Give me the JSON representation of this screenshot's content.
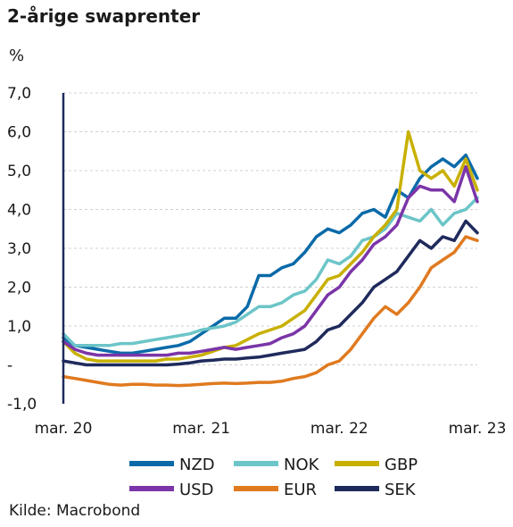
{
  "title": "2-årige swaprenter",
  "unit": "%",
  "source": "Kilde: Macrobond",
  "chart_data": {
    "type": "line",
    "title": "2-årige swaprenter",
    "ylabel": "%",
    "ylim": [
      -1.0,
      7.0
    ],
    "yticks": [
      {
        "v": 7,
        "label": "7,0"
      },
      {
        "v": 6,
        "label": "6,0"
      },
      {
        "v": 5,
        "label": "5,0"
      },
      {
        "v": 4,
        "label": "4,0"
      },
      {
        "v": 3,
        "label": "3,0"
      },
      {
        "v": 2,
        "label": "2,0"
      },
      {
        "v": 1,
        "label": "1,0"
      },
      {
        "v": 0,
        "label": "-"
      },
      {
        "v": -1,
        "label": "-1,0"
      }
    ],
    "xticks": [
      {
        "v": 0,
        "label": "mar. 20"
      },
      {
        "v": 12,
        "label": "mar. 21"
      },
      {
        "v": 24,
        "label": "mar. 22"
      },
      {
        "v": 36,
        "label": "mar. 23"
      }
    ],
    "x_unit": "months since mar. 20",
    "x": [
      0,
      1,
      2,
      3,
      4,
      5,
      6,
      7,
      8,
      9,
      10,
      11,
      12,
      13,
      14,
      15,
      16,
      17,
      18,
      19,
      20,
      21,
      22,
      23,
      24,
      25,
      26,
      27,
      28,
      29,
      30,
      31,
      32,
      33,
      34,
      35,
      36
    ],
    "series": [
      {
        "name": "NZD",
        "color": "#0a6aa8",
        "values": [
          0.7,
          0.5,
          0.45,
          0.4,
          0.35,
          0.3,
          0.3,
          0.35,
          0.4,
          0.45,
          0.5,
          0.6,
          0.8,
          1.0,
          1.2,
          1.2,
          1.5,
          2.3,
          2.3,
          2.5,
          2.6,
          2.9,
          3.3,
          3.5,
          3.4,
          3.6,
          3.9,
          4.0,
          3.8,
          4.5,
          4.3,
          4.8,
          5.1,
          5.3,
          5.1,
          5.4,
          4.8
        ]
      },
      {
        "name": "NOK",
        "color": "#6cc5c8",
        "values": [
          0.8,
          0.5,
          0.5,
          0.5,
          0.5,
          0.55,
          0.55,
          0.6,
          0.65,
          0.7,
          0.75,
          0.8,
          0.9,
          0.95,
          1.0,
          1.1,
          1.3,
          1.5,
          1.5,
          1.6,
          1.8,
          1.9,
          2.2,
          2.7,
          2.6,
          2.8,
          3.2,
          3.3,
          3.5,
          3.9,
          3.8,
          3.7,
          4.0,
          3.6,
          3.9,
          4.0,
          4.3
        ]
      },
      {
        "name": "GBP",
        "color": "#c8b000",
        "values": [
          0.6,
          0.3,
          0.15,
          0.1,
          0.1,
          0.1,
          0.1,
          0.1,
          0.1,
          0.15,
          0.15,
          0.2,
          0.25,
          0.35,
          0.45,
          0.5,
          0.65,
          0.8,
          0.9,
          1.0,
          1.2,
          1.4,
          1.8,
          2.2,
          2.3,
          2.6,
          2.9,
          3.3,
          3.6,
          4.0,
          6.0,
          5.0,
          4.8,
          5.0,
          4.6,
          5.3,
          4.5
        ]
      },
      {
        "name": "USD",
        "color": "#7b35a8",
        "values": [
          0.6,
          0.4,
          0.3,
          0.25,
          0.25,
          0.25,
          0.25,
          0.25,
          0.25,
          0.25,
          0.3,
          0.3,
          0.35,
          0.4,
          0.45,
          0.4,
          0.45,
          0.5,
          0.55,
          0.7,
          0.8,
          1.0,
          1.4,
          1.8,
          2.0,
          2.4,
          2.7,
          3.1,
          3.3,
          3.6,
          4.3,
          4.6,
          4.5,
          4.5,
          4.2,
          5.1,
          4.2
        ]
      },
      {
        "name": "EUR",
        "color": "#e07a1f",
        "values": [
          -0.3,
          -0.35,
          -0.4,
          -0.45,
          -0.5,
          -0.52,
          -0.5,
          -0.5,
          -0.52,
          -0.52,
          -0.53,
          -0.52,
          -0.5,
          -0.48,
          -0.47,
          -0.48,
          -0.47,
          -0.45,
          -0.45,
          -0.42,
          -0.35,
          -0.3,
          -0.2,
          0.0,
          0.1,
          0.4,
          0.8,
          1.2,
          1.5,
          1.3,
          1.6,
          2.0,
          2.5,
          2.7,
          2.9,
          3.3,
          3.2
        ]
      },
      {
        "name": "SEK",
        "color": "#1f2a5c",
        "values": [
          0.1,
          0.05,
          0.0,
          0.0,
          0.0,
          0.0,
          0.0,
          0.0,
          0.0,
          0.0,
          0.02,
          0.05,
          0.1,
          0.12,
          0.15,
          0.15,
          0.18,
          0.2,
          0.25,
          0.3,
          0.35,
          0.4,
          0.6,
          0.9,
          1.0,
          1.3,
          1.6,
          2.0,
          2.2,
          2.4,
          2.8,
          3.2,
          3.0,
          3.3,
          3.2,
          3.7,
          3.4
        ]
      }
    ],
    "legend_position": "bottom"
  }
}
